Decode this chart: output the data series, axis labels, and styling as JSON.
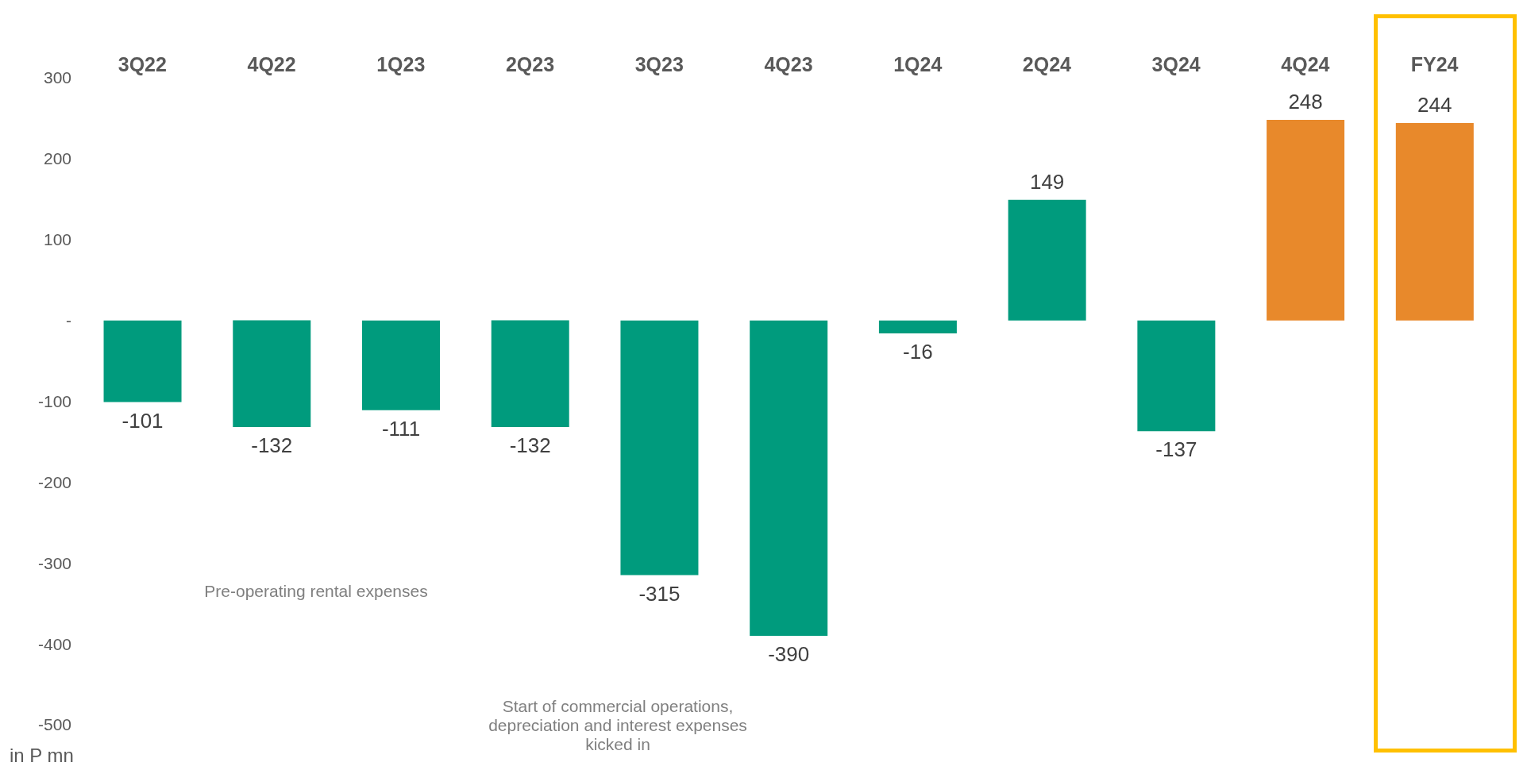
{
  "chart_data": {
    "type": "bar",
    "categories": [
      "3Q22",
      "4Q22",
      "1Q23",
      "2Q23",
      "3Q23",
      "4Q23",
      "1Q24",
      "2Q24",
      "3Q24",
      "4Q24",
      "FY24"
    ],
    "values": [
      -101,
      -132,
      -111,
      -132,
      -315,
      -390,
      -16,
      149,
      -137,
      248,
      244
    ],
    "colors": [
      "#009b7d",
      "#009b7d",
      "#009b7d",
      "#009b7d",
      "#009b7d",
      "#009b7d",
      "#009b7d",
      "#009b7d",
      "#009b7d",
      "#e8892b",
      "#e8892b"
    ],
    "data_labels": true,
    "ylabel": "in P mn",
    "ylim": [
      -500,
      300
    ],
    "yticks": [
      -500,
      -400,
      -300,
      -200,
      -100,
      {
        "value": 0,
        "label": "-"
      },
      100,
      200,
      300
    ],
    "annotations": [
      "Pre-operating rental expenses",
      "Start of commercial operations, depreciation and interest expenses kicked in"
    ],
    "grid": false,
    "legend": false
  }
}
